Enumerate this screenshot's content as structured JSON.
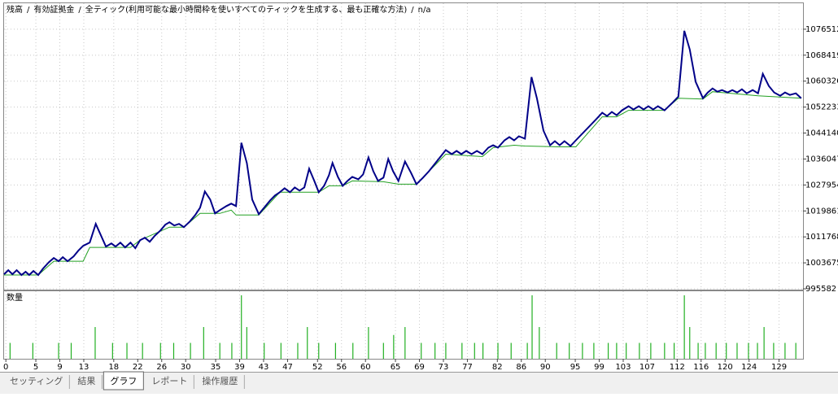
{
  "chart_data": [
    {
      "type": "line",
      "separator": "/",
      "title": "全ティック(利用可能な最小時間枠を使いすべてのティックを生成する、最も正確な方法)",
      "note": "n/a",
      "xlim": [
        -0.3,
        133
      ],
      "ylim": [
        995582,
        1084605
      ],
      "yticks": [
        995582,
        1003675,
        1011768,
        1019861,
        1027954,
        1036047,
        1044140,
        1052233,
        1060326,
        1068419,
        1076512
      ],
      "grid": true,
      "series": [
        {
          "name": "残高",
          "color": "#000088",
          "x": [
            -0.3,
            0.4,
            1.1,
            1.8,
            2.6,
            3.3,
            3.9,
            4.6,
            5.4,
            6.2,
            7.2,
            8.0,
            8.8,
            9.5,
            10.3,
            11.3,
            12.1,
            12.9,
            14.0,
            15.0,
            16.7,
            17.6,
            18.3,
            19.1,
            19.9,
            20.8,
            21.6,
            22.4,
            23.2,
            24.0,
            24.8,
            25.8,
            26.6,
            27.3,
            28.1,
            28.9,
            29.7,
            30.7,
            31.6,
            32.4,
            33.2,
            34.1,
            34.9,
            35.7,
            36.8,
            37.6,
            38.4,
            39.3,
            40.2,
            41.1,
            42.2,
            43.1,
            44.1,
            44.9,
            45.7,
            46.5,
            47.4,
            48.2,
            49.0,
            49.8,
            50.6,
            51.4,
            52.2,
            53.1,
            53.9,
            54.5,
            55.4,
            56.2,
            57.0,
            57.8,
            58.8,
            59.6,
            60.5,
            61.3,
            62.1,
            63.0,
            63.8,
            64.6,
            65.5,
            66.6,
            67.6,
            68.5,
            69.6,
            70.6,
            73.4,
            74.4,
            75.2,
            76.0,
            76.8,
            77.7,
            78.6,
            79.5,
            80.5,
            81.3,
            82.1,
            83.2,
            84.0,
            84.8,
            85.6,
            86.6,
            87.7,
            88.6,
            89.7,
            90.8,
            91.6,
            92.4,
            93.2,
            94.2,
            95.1,
            98.5,
            99.5,
            100.3,
            101.1,
            101.9,
            102.8,
            103.9,
            104.7,
            105.6,
            106.4,
            107.2,
            108.0,
            108.8,
            109.9,
            111.3,
            112.2,
            113.2,
            114.1,
            115.1,
            116.3,
            117.1,
            117.9,
            118.7,
            119.5,
            120.4,
            121.2,
            122.0,
            122.8,
            123.6,
            124.6,
            125.5,
            126.3,
            127.3,
            128.2,
            129.2,
            130.0,
            130.8,
            131.8,
            132.7
          ],
          "values": [
            1000134,
            1001399,
            1000134,
            1001399,
            999881,
            1000893,
            999881,
            1001146,
            999881,
            1001905,
            1003928,
            1005192,
            1004181,
            1005445,
            1004181,
            1005698,
            1007468,
            1008986,
            1009997,
            1015814,
            1008733,
            1009744,
            1008733,
            1009997,
            1008480,
            1009997,
            1008227,
            1010756,
            1011515,
            1010250,
            1012021,
            1013791,
            1015561,
            1016320,
            1015308,
            1015814,
            1014802,
            1016573,
            1018596,
            1020872,
            1025930,
            1023401,
            1019102,
            1020113,
            1021378,
            1022137,
            1021378,
            1041104,
            1034782,
            1023401,
            1018849,
            1020872,
            1023148,
            1024666,
            1025677,
            1026942,
            1025677,
            1027195,
            1026183,
            1027195,
            1033011,
            1029471,
            1025677,
            1027700,
            1030988,
            1034782,
            1030482,
            1027700,
            1029218,
            1030482,
            1029724,
            1031241,
            1036552,
            1032253,
            1029218,
            1030229,
            1036046,
            1032253,
            1029218,
            1035287,
            1031747,
            1028206,
            1030229,
            1032253,
            1038828,
            1037563,
            1038575,
            1037563,
            1038575,
            1037563,
            1038575,
            1037563,
            1039587,
            1040345,
            1039587,
            1041863,
            1042874,
            1041863,
            1043127,
            1042369,
            1061589,
            1055014,
            1044898,
            1040345,
            1041610,
            1040345,
            1041610,
            1040092,
            1041863,
            1048438,
            1050461,
            1049450,
            1050714,
            1049703,
            1051220,
            1052485,
            1051473,
            1052485,
            1051473,
            1052485,
            1051473,
            1052485,
            1051220,
            1053749,
            1055519,
            1076004,
            1070188,
            1060072,
            1055014,
            1056784,
            1058048,
            1057037,
            1057543,
            1056784,
            1057543,
            1056784,
            1057795,
            1056531,
            1057543,
            1056531,
            1062601,
            1058807,
            1056784,
            1055772,
            1056784,
            1056025,
            1056531,
            1055014
          ]
        },
        {
          "name": "有効証拠金",
          "color": "#22a022",
          "x": [
            -0.3,
            5.4,
            8.0,
            12.9,
            14.0,
            20.8,
            22.4,
            27.3,
            29.7,
            32.4,
            35.7,
            37.6,
            38.4,
            42.2,
            45.7,
            52.2,
            53.9,
            56.2,
            57.8,
            63.0,
            65.5,
            68.5,
            73.4,
            79.5,
            81.3,
            84.8,
            86.6,
            92.4,
            95.1,
            99.5,
            101.9,
            103.9,
            109.9,
            112.2,
            116.3,
            117.9,
            125.5,
            132.7
          ],
          "values": [
            999881,
            999881,
            1004181,
            1004181,
            1008480,
            1008480,
            1010756,
            1014802,
            1014802,
            1019102,
            1019102,
            1020113,
            1018596,
            1018596,
            1025677,
            1025677,
            1027700,
            1027700,
            1029218,
            1028965,
            1028206,
            1028206,
            1037563,
            1036805,
            1039587,
            1040345,
            1040092,
            1039839,
            1039839,
            1049197,
            1049197,
            1051220,
            1051220,
            1055014,
            1054761,
            1057037,
            1055772,
            1055014
          ]
        }
      ]
    },
    {
      "type": "bar",
      "title": "数量",
      "color": "#22b022",
      "xlim": [
        -0.3,
        133
      ],
      "xticks": [
        0,
        5,
        9,
        13,
        18,
        22,
        26,
        30,
        35,
        39,
        43,
        47,
        52,
        56,
        60,
        65,
        69,
        73,
        77,
        82,
        86,
        90,
        95,
        99,
        103,
        107,
        112,
        116,
        120,
        124,
        129
      ],
      "x": [
        0.7,
        4.5,
        8.8,
        10.9,
        14.9,
        17.8,
        20.2,
        22.8,
        25.8,
        28.0,
        30.8,
        33.0,
        35.7,
        37.7,
        39.3,
        40.2,
        43.1,
        45.9,
        48.7,
        50.3,
        52.2,
        55.0,
        57.9,
        60.5,
        63.0,
        64.7,
        66.6,
        69.3,
        71.6,
        73.4,
        76.1,
        78.2,
        79.6,
        82.1,
        84.3,
        87.0,
        87.8,
        89.0,
        91.9,
        94.0,
        96.2,
        98.1,
        100.5,
        101.9,
        103.5,
        105.7,
        107.6,
        109.9,
        111.5,
        113.2,
        114.1,
        115.5,
        116.7,
        118.5,
        120.2,
        122.0,
        123.9,
        125.4,
        126.5,
        128.1,
        130.0,
        131.8
      ],
      "values": [
        1,
        1,
        1,
        1,
        2,
        1,
        1,
        1,
        1,
        1,
        1,
        2,
        1,
        1,
        4,
        2,
        1,
        1,
        1,
        2,
        1,
        1,
        1,
        2,
        1,
        1.5,
        2,
        1,
        1,
        1,
        1,
        1,
        1,
        1,
        1,
        1,
        4,
        2,
        1,
        1,
        1,
        1,
        1,
        1,
        1,
        1,
        1,
        1,
        1,
        4,
        2,
        1,
        1,
        1,
        1,
        1,
        1,
        1,
        2,
        1,
        1,
        1
      ]
    }
  ],
  "tabs": [
    "セッティング",
    "結果",
    "グラフ",
    "レポート",
    "操作履歴"
  ],
  "active_tab": 2
}
